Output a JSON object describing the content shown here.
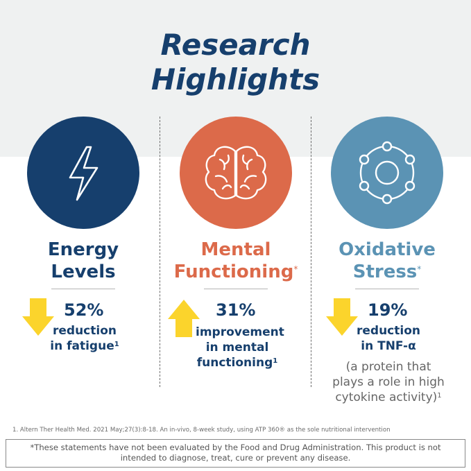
{
  "title": {
    "line1": "Research",
    "line2": "Highlights"
  },
  "colors": {
    "navy": "#163f6d",
    "orange": "#dc6a4a",
    "teal": "#5b93b4",
    "arrow_yellow": "#fbd42c",
    "band": "#eff1f1"
  },
  "columns": [
    {
      "icon": "lightning-bolt-icon",
      "heading_line1": "Energy",
      "heading_line2": "Levels",
      "heading_mark": "",
      "arrow": "down",
      "percent": "52%",
      "desc_line1": "reduction",
      "desc_line2": "in fatigue",
      "desc_line3": "",
      "desc_mark": "1"
    },
    {
      "icon": "brain-icon",
      "heading_line1": "Mental",
      "heading_line2": "Functioning",
      "heading_mark": "*",
      "arrow": "up",
      "percent": "31%",
      "desc_line1": "improvement",
      "desc_line2": "in mental",
      "desc_line3": "functioning",
      "desc_mark": "1"
    },
    {
      "icon": "molecule-ring-icon",
      "heading_line1": "Oxidative",
      "heading_line2": "Stress",
      "heading_mark": "*",
      "arrow": "down",
      "percent": "19%",
      "desc_line1": "reduction",
      "desc_line2": "in TNF-α",
      "desc_line3": "",
      "desc_mark": "",
      "note_line1": "(a protein that",
      "note_line2": "plays a role in high",
      "note_line3": "cytokine activity)",
      "note_mark": "1"
    }
  ],
  "footnote": "1. Altern Ther Health Med. 2021 May;27(3):8-18. An in-vivo, 8-week study, using ATP 360® as the sole nutritional intervention",
  "disclaimer": "*These statements have not been evaluated by the Food and Drug Administration. This product is not intended to diagnose, treat, cure or prevent any disease."
}
